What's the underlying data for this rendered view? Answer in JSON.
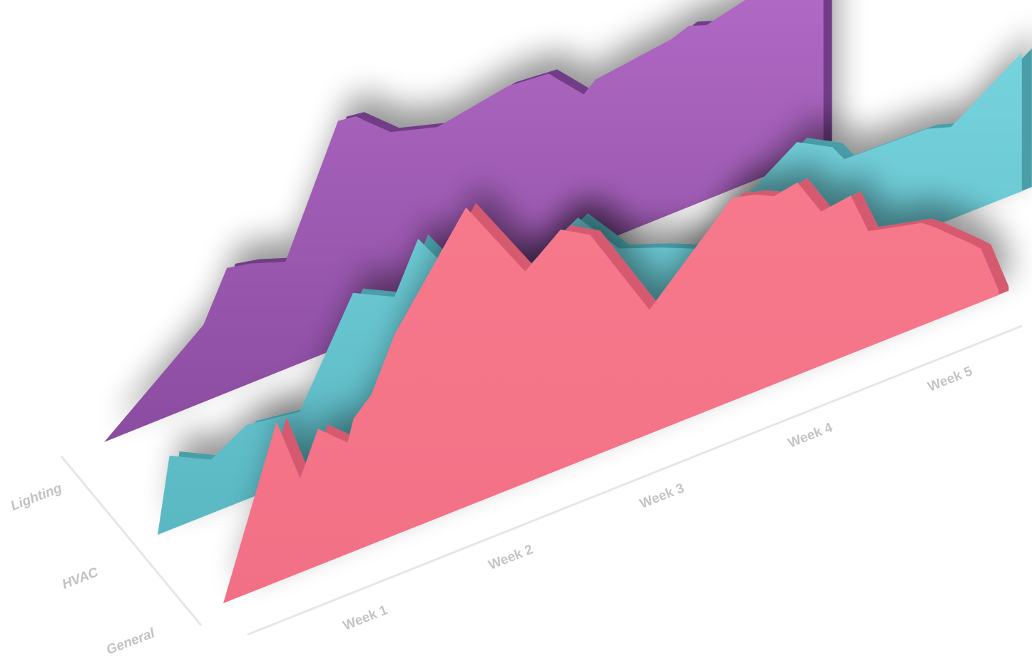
{
  "chart_data": {
    "type": "area",
    "style": "3d-isometric-ribbons",
    "title": "",
    "categories": [
      "Week 1",
      "Week 2",
      "Week 3",
      "Week 4",
      "Week 5"
    ],
    "x_unit": "week",
    "series": [
      {
        "name": "Lighting",
        "color": "#9b59b6",
        "points": [
          [
            0.0,
            0.0
          ],
          [
            0.85,
            0.62
          ],
          [
            1.05,
            1.0
          ],
          [
            1.25,
            0.96
          ],
          [
            1.55,
            0.86
          ],
          [
            2.0,
            1.82
          ],
          [
            2.15,
            1.8
          ],
          [
            2.45,
            1.56
          ],
          [
            2.85,
            1.45
          ],
          [
            3.45,
            1.55
          ],
          [
            3.8,
            1.52
          ],
          [
            4.1,
            1.24
          ],
          [
            4.2,
            1.32
          ],
          [
            4.85,
            1.4
          ],
          [
            5.0,
            1.45
          ],
          [
            5.15,
            1.4
          ],
          [
            5.5,
            1.48
          ],
          [
            5.75,
            1.5
          ],
          [
            5.95,
            1.55
          ],
          [
            6.1,
            1.58
          ],
          [
            6.15,
            1.38
          ]
        ]
      },
      {
        "name": "HVAC",
        "color": "#5fc8d2",
        "points": [
          [
            0.0,
            0.0
          ],
          [
            0.1,
            0.58
          ],
          [
            0.45,
            0.42
          ],
          [
            0.75,
            0.58
          ],
          [
            1.2,
            0.52
          ],
          [
            1.65,
            1.28
          ],
          [
            2.0,
            1.12
          ],
          [
            2.2,
            1.5
          ],
          [
            2.6,
            0.98
          ],
          [
            3.1,
            0.93
          ],
          [
            3.55,
            1.17
          ],
          [
            3.9,
            0.8
          ],
          [
            4.25,
            0.68
          ],
          [
            4.55,
            0.56
          ],
          [
            5.4,
            1.08
          ],
          [
            5.7,
            0.93
          ],
          [
            5.8,
            0.8
          ],
          [
            6.5,
            0.78
          ],
          [
            6.7,
            0.72
          ],
          [
            7.3,
            1.08
          ],
          [
            7.3,
            0.7
          ]
        ]
      },
      {
        "name": "General",
        "color": "#f4768a",
        "points": [
          [
            0.0,
            0.0
          ],
          [
            0.45,
            0.75
          ],
          [
            0.65,
            0.44
          ],
          [
            0.8,
            0.64
          ],
          [
            1.05,
            0.52
          ],
          [
            1.1,
            0.62
          ],
          [
            1.25,
            0.7
          ],
          [
            1.45,
            0.94
          ],
          [
            2.05,
            1.4
          ],
          [
            2.55,
            0.99
          ],
          [
            2.85,
            1.12
          ],
          [
            3.1,
            1.04
          ],
          [
            3.6,
            0.58
          ],
          [
            4.3,
            0.95
          ],
          [
            4.5,
            0.92
          ],
          [
            4.65,
            0.88
          ],
          [
            4.85,
            0.9
          ],
          [
            5.05,
            0.72
          ],
          [
            5.3,
            0.74
          ],
          [
            5.45,
            0.54
          ],
          [
            5.9,
            0.48
          ],
          [
            6.0,
            0.44
          ],
          [
            6.3,
            0.3
          ],
          [
            6.4,
            0.25
          ],
          [
            6.55,
            0.02
          ]
        ]
      }
    ],
    "axes": {
      "x_labels": [
        "Week 1",
        "Week 2",
        "Week 3",
        "Week 4",
        "Week 5"
      ],
      "depth_labels": [
        "Lighting",
        "HVAC",
        "General"
      ]
    },
    "legend": "none",
    "grid": false
  }
}
